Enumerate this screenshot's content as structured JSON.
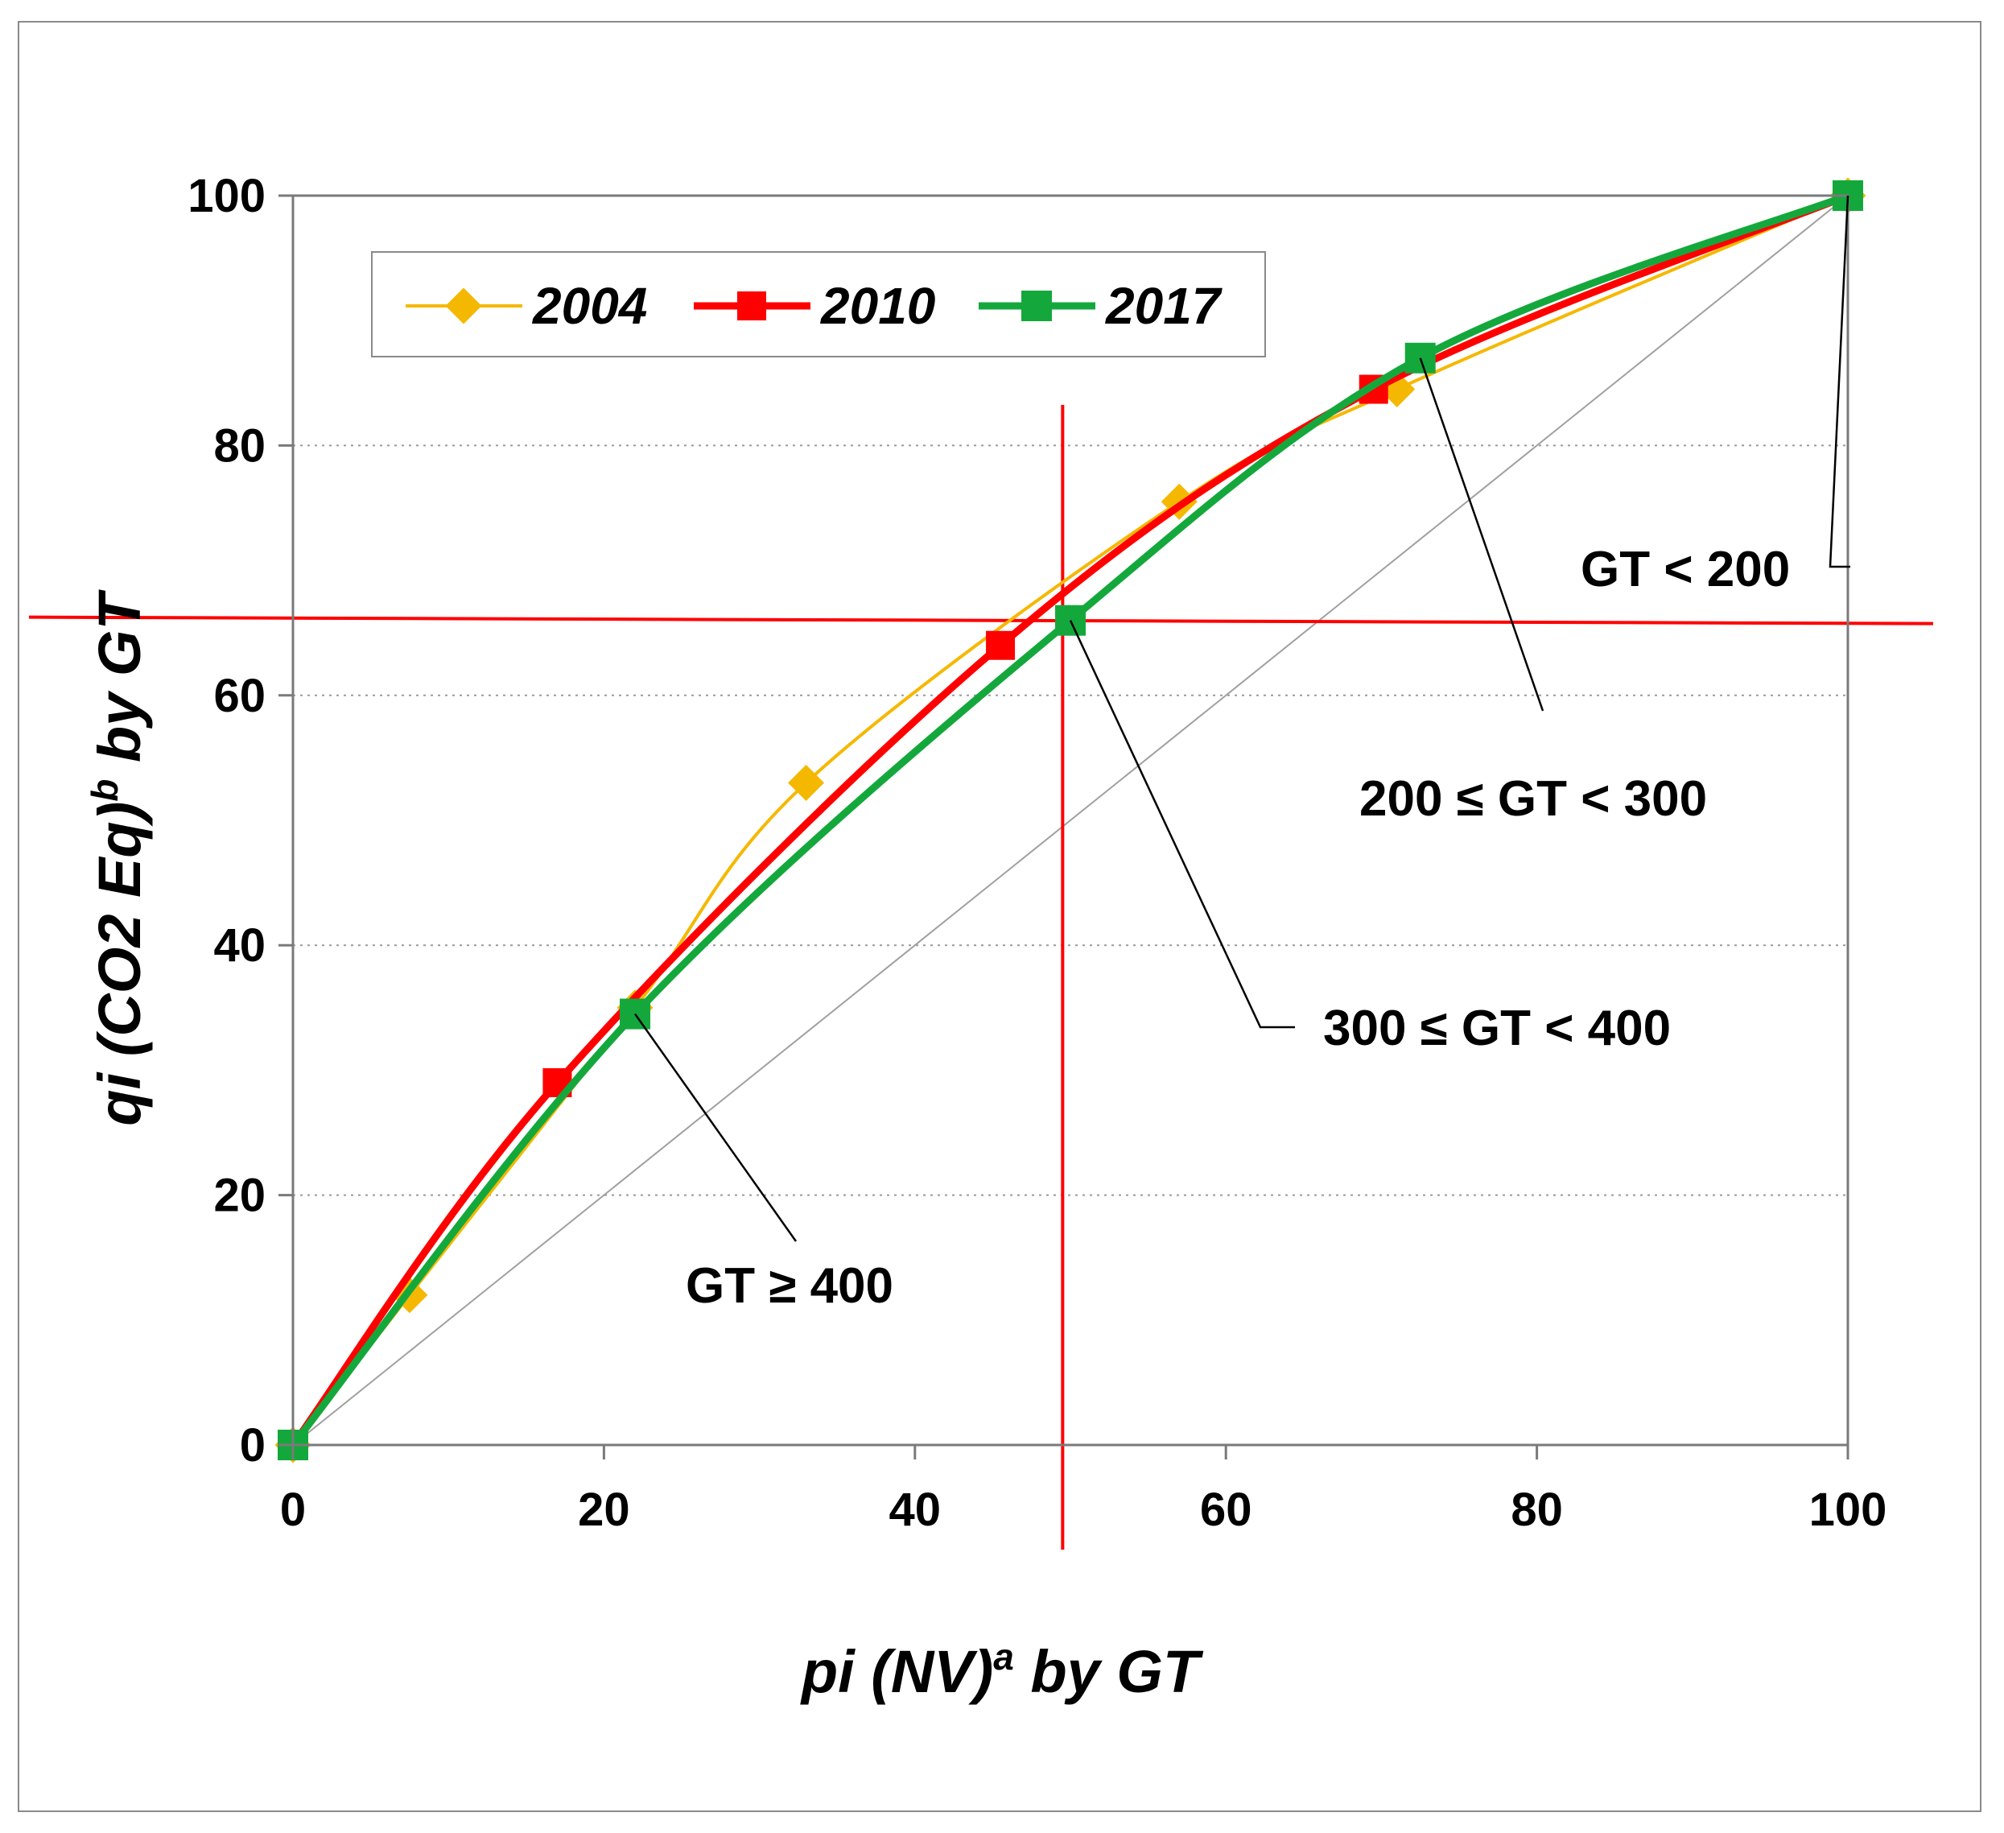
{
  "chart_data": {
    "type": "line",
    "title": "",
    "xlabel": {
      "main": "pi (NV)",
      "sup": "a",
      "suffix": " by GT"
    },
    "ylabel": {
      "main": "qi (CO2 Eq)",
      "sup": "b",
      "suffix": " by GT"
    },
    "xlim": [
      0,
      100
    ],
    "ylim": [
      0,
      100
    ],
    "xticks": [
      "0",
      "20",
      "40",
      "60",
      "80",
      "100"
    ],
    "yticks": [
      "0",
      "20",
      "40",
      "60",
      "80",
      "100"
    ],
    "grid": "horizontal dotted",
    "legend_position": "top-left",
    "series": [
      {
        "name": "2004",
        "color": "#f5b800",
        "marker": "diamond",
        "points": [
          [
            0,
            0
          ],
          [
            7.5,
            12
          ],
          [
            22,
            35
          ],
          [
            33,
            53
          ],
          [
            57,
            75.5
          ],
          [
            71,
            84.5
          ],
          [
            100,
            100
          ]
        ]
      },
      {
        "name": "2010",
        "color": "#ff0000",
        "marker": "square",
        "points": [
          [
            0,
            0
          ],
          [
            17,
            29
          ],
          [
            45.5,
            64
          ],
          [
            69.5,
            84.5
          ],
          [
            100,
            100
          ]
        ]
      },
      {
        "name": "2017",
        "color": "#14a83c",
        "marker": "square",
        "points": [
          [
            0,
            0
          ],
          [
            22,
            34.5
          ],
          [
            50,
            66
          ],
          [
            72.5,
            87
          ],
          [
            100,
            100
          ]
        ]
      }
    ],
    "reference_line": {
      "name": "equality diagonal",
      "color": "#a0a0a0",
      "points": [
        [
          0,
          0
        ],
        [
          100,
          100
        ]
      ]
    },
    "crosshair": {
      "color": "#ff0000",
      "x": 49.5,
      "y": 66
    },
    "annotations": [
      {
        "text": "GT < 200",
        "target": [
          100,
          100
        ]
      },
      {
        "text": "200 ≤  GT < 300",
        "target": [
          72.5,
          87
        ]
      },
      {
        "text": "300 ≤ GT < 400",
        "target": [
          50,
          66
        ]
      },
      {
        "text": "GT ≥  400",
        "target": [
          22,
          34.5
        ]
      }
    ]
  }
}
